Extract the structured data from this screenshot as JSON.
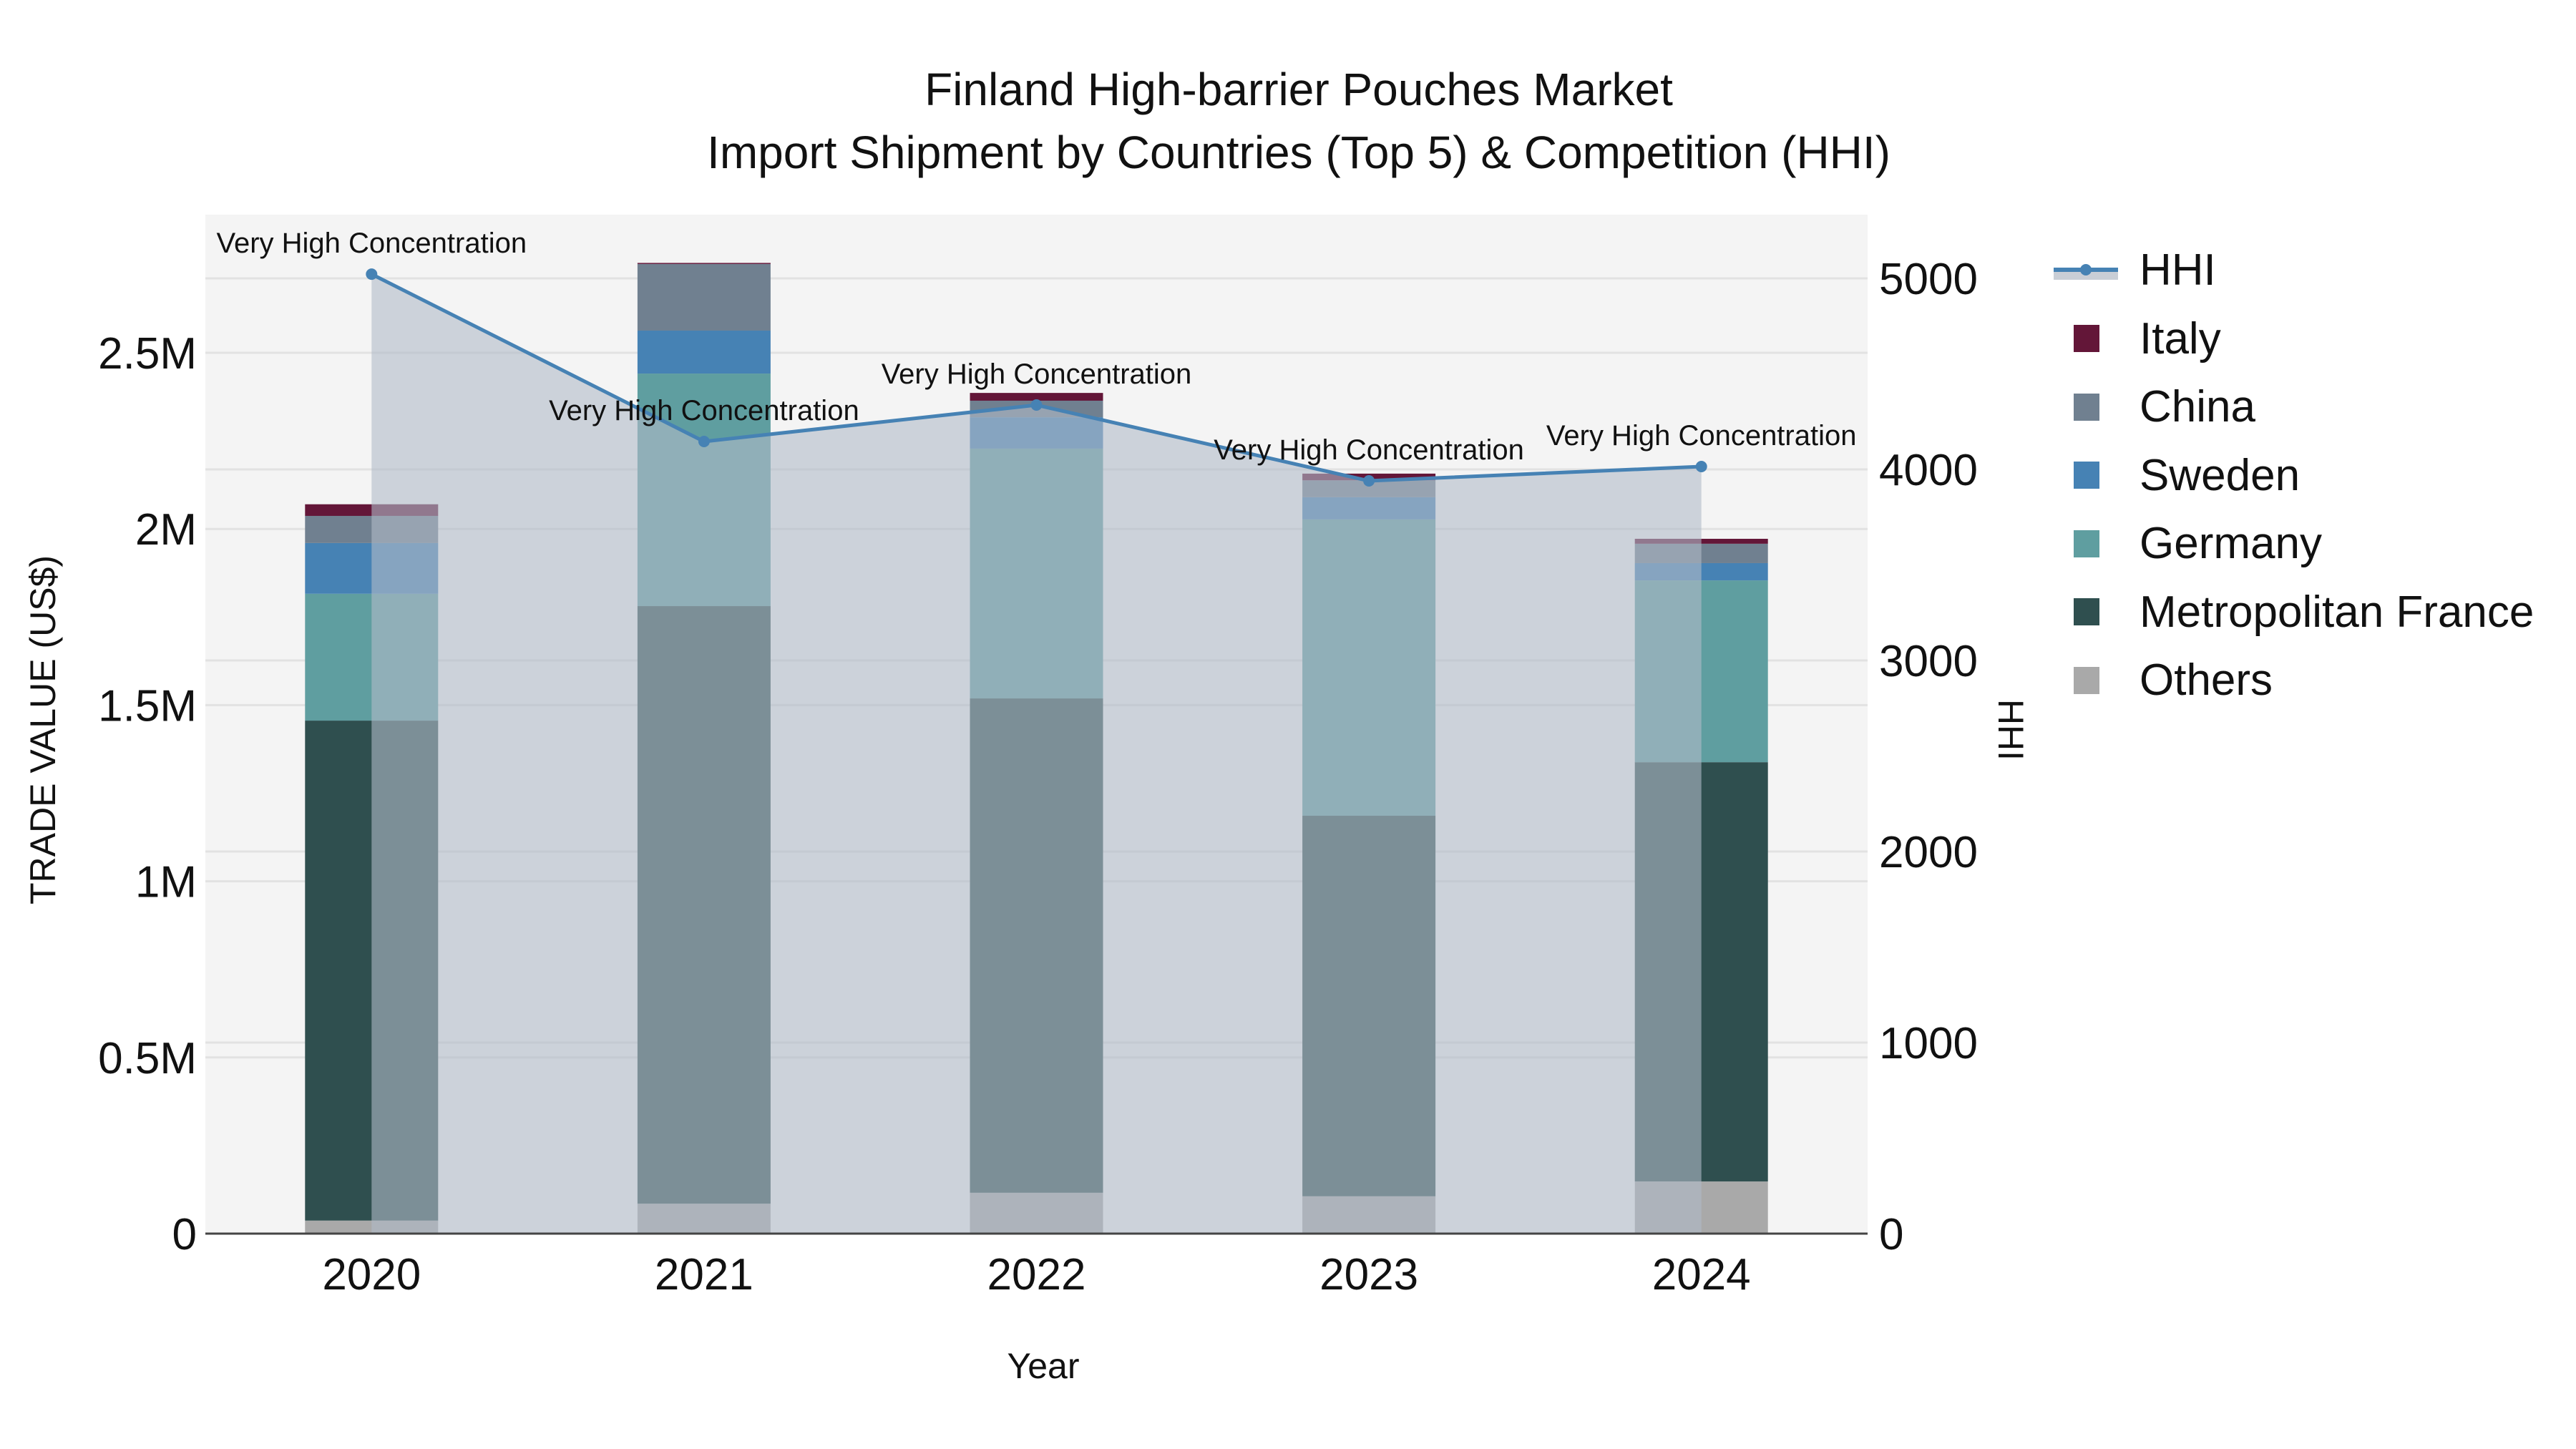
{
  "title": {
    "line1": "Finland High-barrier Pouches Market",
    "line2": "Import Shipment by Countries (Top 5) & Competition (HHI)"
  },
  "axes": {
    "x_title": "Year",
    "y_left_title": "TRADE VALUE (US$)",
    "y_right_title": "HHI"
  },
  "legend": {
    "items": [
      {
        "label": "HHI",
        "type": "line",
        "color": "#4682b4"
      },
      {
        "label": "Italy",
        "type": "bar",
        "color": "#631638"
      },
      {
        "label": "China",
        "type": "bar",
        "color": "#708090"
      },
      {
        "label": "Sweden",
        "type": "bar",
        "color": "#4682b4"
      },
      {
        "label": "Germany",
        "type": "bar",
        "color": "#5f9ea0"
      },
      {
        "label": "Metropolitan France",
        "type": "bar",
        "color": "#2f4f4f"
      },
      {
        "label": "Others",
        "type": "bar",
        "color": "#a9a9a9"
      }
    ]
  },
  "chart_data": {
    "type": "bar",
    "subtype": "stacked bar + line (dual axis)",
    "title": "Finland High-barrier Pouches Market — Import Shipment by Countries (Top 5) & Competition (HHI)",
    "xlabel": "Year",
    "ylabel": "TRADE VALUE (US$)",
    "y2label": "HHI",
    "categories": [
      "2020",
      "2021",
      "2022",
      "2023",
      "2024"
    ],
    "ylim": [
      0,
      2900000
    ],
    "y_ticks": [
      0,
      500000,
      1000000,
      1500000,
      2000000,
      2500000
    ],
    "y_tick_labels": [
      "0",
      "0.5M",
      "1M",
      "1.5M",
      "2M",
      "2.5M"
    ],
    "y2lim": [
      0,
      5300
    ],
    "y2_ticks": [
      0,
      1000,
      2000,
      3000,
      4000,
      5000
    ],
    "y2_tick_labels": [
      "0",
      "1000",
      "2000",
      "3000",
      "4000",
      "5000"
    ],
    "grid": true,
    "legend_position": "right",
    "series": [
      {
        "name": "Others",
        "color": "#a9a9a9",
        "values": [
          37000,
          85000,
          116000,
          106000,
          148000
        ]
      },
      {
        "name": "Metropolitan France",
        "color": "#2f4f4f",
        "values": [
          1419000,
          1696000,
          1403000,
          1080000,
          1190000
        ]
      },
      {
        "name": "Germany",
        "color": "#5f9ea0",
        "values": [
          360000,
          660000,
          709000,
          841000,
          516000
        ]
      },
      {
        "name": "Sweden",
        "color": "#4682b4",
        "values": [
          144000,
          122000,
          89000,
          63000,
          49000
        ]
      },
      {
        "name": "China",
        "color": "#708090",
        "values": [
          77000,
          189000,
          47000,
          48000,
          55000
        ]
      },
      {
        "name": "Italy",
        "color": "#631638",
        "values": [
          33000,
          3000,
          22000,
          19000,
          14000
        ]
      }
    ],
    "line_series": {
      "name": "HHI",
      "axis": "right",
      "color": "#4682b4",
      "values": [
        5022,
        4146,
        4337,
        3940,
        4015
      ],
      "annotations": [
        "Very High Concentration",
        "Very High Concentration",
        "Very High Concentration",
        "Very High Concentration",
        "Very High Concentration"
      ]
    }
  }
}
